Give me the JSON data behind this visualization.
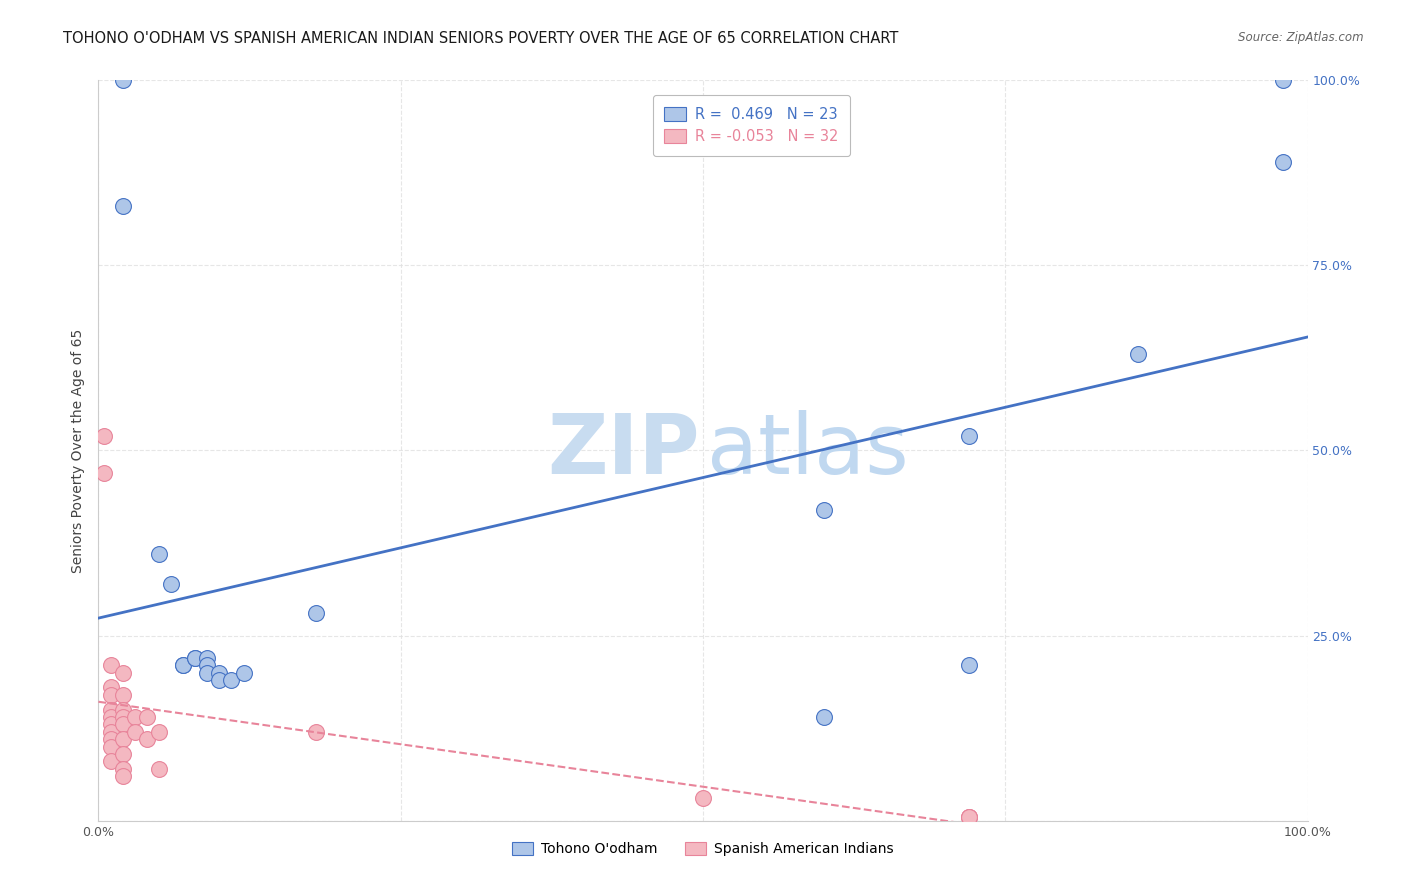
{
  "title": "TOHONO O'ODHAM VS SPANISH AMERICAN INDIAN SENIORS POVERTY OVER THE AGE OF 65 CORRELATION CHART",
  "source": "Source: ZipAtlas.com",
  "ylabel": "Seniors Poverty Over the Age of 65",
  "xlim": [
    0,
    1.0
  ],
  "ylim": [
    0,
    1.0
  ],
  "blue_R": 0.469,
  "blue_N": 23,
  "pink_R": -0.053,
  "pink_N": 32,
  "blue_points": [
    [
      0.02,
      1.0
    ],
    [
      0.02,
      0.83
    ],
    [
      0.05,
      0.36
    ],
    [
      0.06,
      0.32
    ],
    [
      0.07,
      0.21
    ],
    [
      0.07,
      0.21
    ],
    [
      0.08,
      0.22
    ],
    [
      0.08,
      0.22
    ],
    [
      0.09,
      0.22
    ],
    [
      0.09,
      0.21
    ],
    [
      0.09,
      0.2
    ],
    [
      0.1,
      0.2
    ],
    [
      0.1,
      0.19
    ],
    [
      0.11,
      0.19
    ],
    [
      0.12,
      0.2
    ],
    [
      0.18,
      0.28
    ],
    [
      0.6,
      0.42
    ],
    [
      0.72,
      0.52
    ],
    [
      0.72,
      0.21
    ],
    [
      0.86,
      0.63
    ],
    [
      0.98,
      1.0
    ],
    [
      0.98,
      0.89
    ],
    [
      0.6,
      0.14
    ]
  ],
  "pink_points": [
    [
      0.005,
      0.52
    ],
    [
      0.005,
      0.47
    ],
    [
      0.01,
      0.21
    ],
    [
      0.01,
      0.18
    ],
    [
      0.01,
      0.17
    ],
    [
      0.01,
      0.15
    ],
    [
      0.01,
      0.14
    ],
    [
      0.01,
      0.13
    ],
    [
      0.01,
      0.12
    ],
    [
      0.01,
      0.11
    ],
    [
      0.01,
      0.1
    ],
    [
      0.01,
      0.08
    ],
    [
      0.02,
      0.2
    ],
    [
      0.02,
      0.17
    ],
    [
      0.02,
      0.15
    ],
    [
      0.02,
      0.14
    ],
    [
      0.02,
      0.13
    ],
    [
      0.02,
      0.11
    ],
    [
      0.02,
      0.09
    ],
    [
      0.02,
      0.07
    ],
    [
      0.02,
      0.06
    ],
    [
      0.03,
      0.14
    ],
    [
      0.03,
      0.12
    ],
    [
      0.04,
      0.14
    ],
    [
      0.04,
      0.11
    ],
    [
      0.05,
      0.12
    ],
    [
      0.05,
      0.07
    ],
    [
      0.18,
      0.12
    ],
    [
      0.5,
      0.03
    ],
    [
      0.72,
      0.005
    ],
    [
      0.72,
      0.005
    ],
    [
      0.72,
      0.005
    ]
  ],
  "blue_color": "#aec6e8",
  "pink_color": "#f4b8c1",
  "blue_line_color": "#4472c4",
  "pink_line_color": "#e8849a",
  "background_color": "#ffffff",
  "grid_color": "#e0e0e0",
  "title_fontsize": 10.5,
  "label_fontsize": 10,
  "tick_fontsize": 9,
  "right_tick_color": "#4472c4",
  "watermark_zip_color": "#c8dcf0",
  "watermark_atlas_color": "#c0d8f0",
  "watermark_fontsize": 60
}
